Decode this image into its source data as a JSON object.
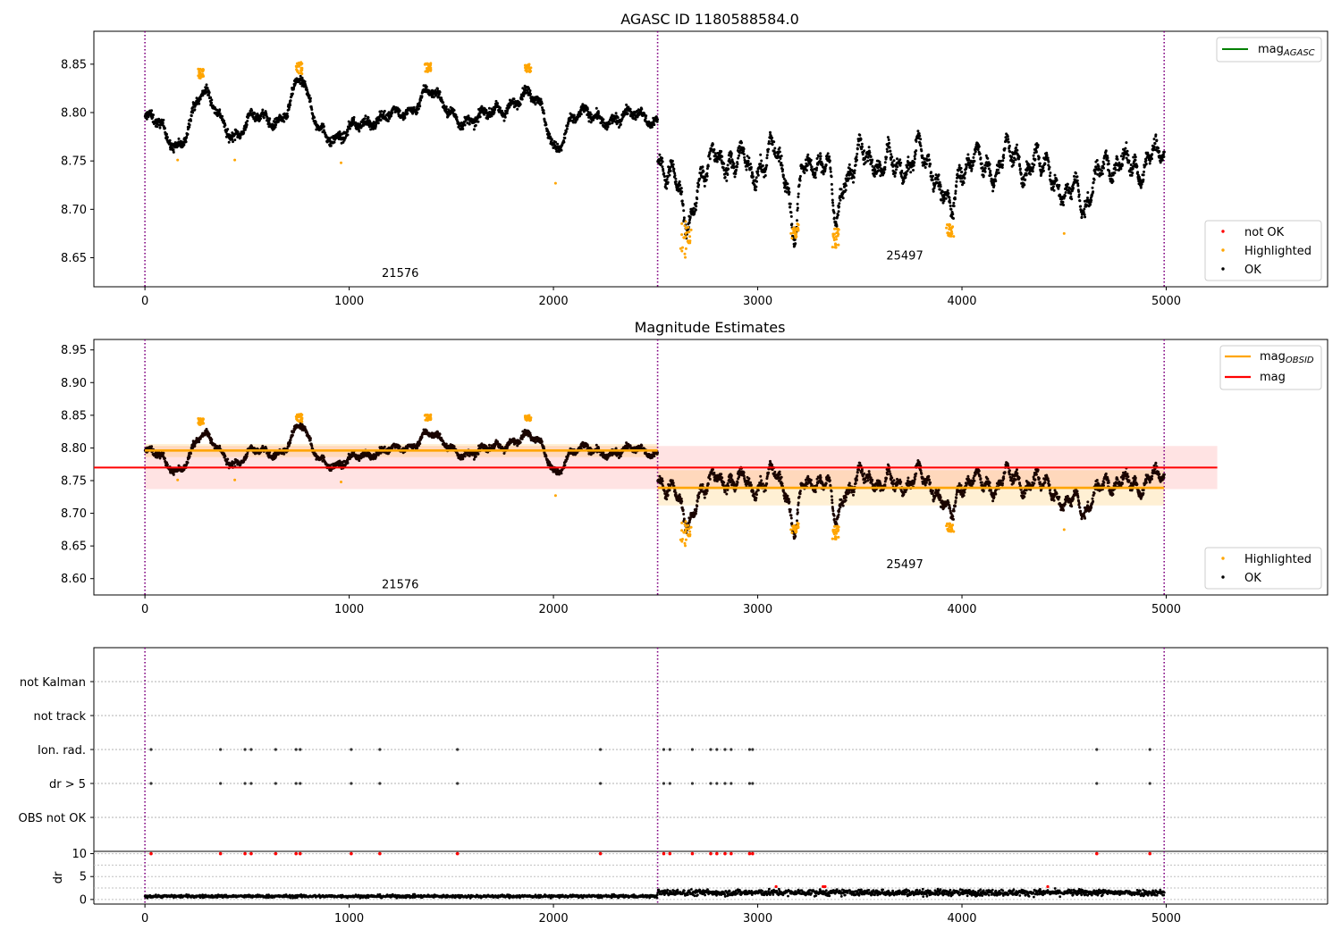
{
  "figure": {
    "top_title": "AGASC ID 1180588584.0",
    "mid_title": "Magnitude Estimates"
  },
  "chart_data": [
    {
      "type": "scatter",
      "title": "AGASC ID 1180588584.0",
      "xlim": [
        -250,
        5790
      ],
      "ylim": [
        8.62,
        8.884
      ],
      "x_ticks": [
        "0",
        "1000",
        "2000",
        "3000",
        "4000",
        "5000"
      ],
      "y_ticks": [
        "8.65",
        "8.70",
        "8.75",
        "8.80",
        "8.85"
      ],
      "obsid_boundaries": [
        0,
        2510,
        4990
      ],
      "obsid_labels": [
        {
          "label": "21576",
          "x": 1250,
          "y": 8.63
        },
        {
          "label": "25497",
          "x": 3720,
          "y": 8.648
        }
      ],
      "legend_upper": [
        {
          "label": "mag",
          "subscript": "AGASC",
          "color": "#008000",
          "kind": "line"
        }
      ],
      "legend_lower": [
        {
          "label": "not OK",
          "color": "#ff0000",
          "kind": "point"
        },
        {
          "label": "Highlighted",
          "color": "#ffa500",
          "kind": "point"
        },
        {
          "label": "OK",
          "color": "#000000",
          "kind": "point"
        }
      ],
      "series_model": {
        "obs1": {
          "x_range": [
            0,
            2510
          ],
          "baseline": 8.795,
          "noise": 0.008
        },
        "obs2": {
          "x_range": [
            2510,
            4990
          ],
          "baseline": 8.748,
          "noise": 0.012
        },
        "dips": [
          {
            "center": 160,
            "width": 90,
            "depth": 0.03
          },
          {
            "center": 270,
            "width": 80,
            "depth": -0.025
          },
          {
            "center": 450,
            "width": 60,
            "depth": 0.018
          },
          {
            "center": 760,
            "width": 50,
            "depth": -0.035
          },
          {
            "center": 950,
            "width": 80,
            "depth": 0.025
          },
          {
            "center": 1380,
            "width": 70,
            "depth": -0.03
          },
          {
            "center": 1850,
            "width": 90,
            "depth": -0.025
          },
          {
            "center": 2010,
            "width": 50,
            "depth": 0.03
          },
          {
            "center": 2650,
            "width": 40,
            "depth": 0.08
          },
          {
            "center": 3180,
            "width": 30,
            "depth": 0.065
          },
          {
            "center": 3380,
            "width": 30,
            "depth": 0.06
          },
          {
            "center": 3940,
            "width": 40,
            "depth": 0.055
          },
          {
            "center": 4500,
            "width": 40,
            "depth": 0.05
          },
          {
            "center": 4620,
            "width": 60,
            "depth": 0.035
          }
        ],
        "highlighted_clusters": [
          {
            "x_range": [
              2620,
              2680
            ],
            "y_range": [
              8.65,
              8.69
            ]
          },
          {
            "x_range": [
              3160,
              3200
            ],
            "y_range": [
              8.67,
              8.685
            ]
          },
          {
            "x_range": [
              3365,
              3400
            ],
            "y_range": [
              8.66,
              8.68
            ]
          },
          {
            "x_range": [
              3920,
              3960
            ],
            "y_range": [
              8.672,
              8.685
            ]
          },
          {
            "x_range": [
              1370,
              1400
            ],
            "y_range": [
              8.84,
              8.853
            ]
          },
          {
            "x_range": [
              740,
              770
            ],
            "y_range": [
              8.84,
              8.852
            ]
          },
          {
            "x_range": [
              1860,
              1890
            ],
            "y_range": [
              8.84,
              8.85
            ]
          },
          {
            "x_range": [
              260,
              290
            ],
            "y_range": [
              8.835,
              8.845
            ]
          }
        ],
        "highlighted_singles": [
          {
            "x": 160,
            "y": 8.751
          },
          {
            "x": 440,
            "y": 8.751
          },
          {
            "x": 960,
            "y": 8.748
          },
          {
            "x": 2010,
            "y": 8.727
          },
          {
            "x": 4500,
            "y": 8.675
          }
        ]
      }
    },
    {
      "type": "scatter",
      "title": "Magnitude Estimates",
      "xlim": [
        -250,
        5790
      ],
      "ylim": [
        8.575,
        8.966
      ],
      "x_ticks": [
        "0",
        "1000",
        "2000",
        "3000",
        "4000",
        "5000"
      ],
      "y_ticks": [
        "8.60",
        "8.65",
        "8.70",
        "8.75",
        "8.80",
        "8.85",
        "8.90",
        "8.95"
      ],
      "obsid_labels": [
        {
          "label": "21576",
          "x": 1250,
          "y": 8.585
        },
        {
          "label": "25497",
          "x": 3720,
          "y": 8.616
        }
      ],
      "mag_obsid": [
        {
          "x_range": [
            0,
            2510
          ],
          "value": 8.796,
          "band": [
            8.786,
            8.806
          ]
        },
        {
          "x_range": [
            2510,
            4990
          ],
          "value": 8.739,
          "band": [
            8.712,
            8.766
          ]
        }
      ],
      "mag": {
        "value": 8.77,
        "band": [
          8.737,
          8.803
        ],
        "x_range": [
          0,
          5250
        ]
      },
      "legend_upper": [
        {
          "label": "mag",
          "subscript": "OBSID",
          "color": "#ffa500",
          "kind": "line"
        },
        {
          "label": "mag",
          "color": "#ff0000",
          "kind": "line"
        }
      ],
      "legend_lower": [
        {
          "label": "Highlighted",
          "color": "#ffa500",
          "kind": "point"
        },
        {
          "label": "OK",
          "color": "#000000",
          "kind": "point"
        }
      ]
    },
    {
      "type": "scatter",
      "categories": [
        "not Kalman",
        "not track",
        "Ion. rad.",
        "dr > 5",
        "OBS not OK"
      ],
      "flag_x": [
        30,
        370,
        490,
        520,
        640,
        740,
        760,
        1010,
        1150,
        1530,
        2230,
        2540,
        2570,
        2680,
        2770,
        2800,
        2840,
        2870,
        2960,
        2975,
        4660,
        4920
      ],
      "flagged_rows": [
        "Ion. rad.",
        "dr > 5"
      ]
    },
    {
      "type": "scatter",
      "ylabel": "dr",
      "y_ticks": [
        "0",
        "5",
        "10"
      ],
      "ylim": [
        -1,
        10.5
      ],
      "clip_value": 10,
      "obs1_level": 0.7,
      "obs2_level": 1.5
    }
  ]
}
